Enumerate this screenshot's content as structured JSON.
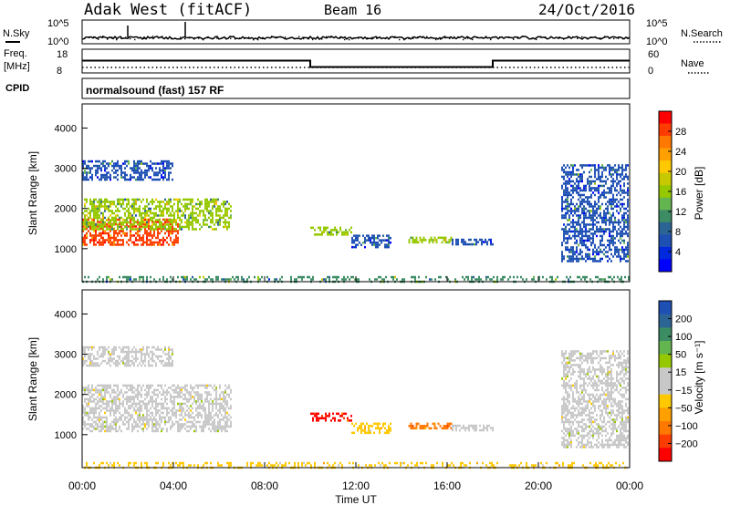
{
  "header": {
    "station": "Adak West (fitACF)",
    "beam": "Beam 16",
    "date": "24/Oct/2016"
  },
  "noise_panel": {
    "left_label": "N.Sky",
    "right_label": "N.Search",
    "ticks_left": [
      "10^5",
      "10^0"
    ],
    "ticks_right": [
      "10^5",
      "10^0"
    ]
  },
  "freq_panel": {
    "left_label_1": "Freq.",
    "left_label_2": "[MHz]",
    "cpid_label": "CPID",
    "right_label": "Nave",
    "ticks_left": [
      "18",
      "8"
    ],
    "ticks_right": [
      "60",
      "0"
    ],
    "cpid_text": "normalsound (fast) 157 RF",
    "frequency_steps_mhz": [
      {
        "from_hour": 0,
        "to_hour": 10,
        "value": 13.2
      },
      {
        "from_hour": 10,
        "to_hour": 18,
        "value": 10.5
      },
      {
        "from_hour": 18,
        "to_hour": 24,
        "value": 13.2
      }
    ]
  },
  "colorbars": {
    "power": {
      "label": "Power [dB]",
      "ticks": [
        "28",
        "24",
        "20",
        "16",
        "12",
        "8",
        "4"
      ],
      "colors": [
        "#ff0000",
        "#ff3c00",
        "#ff7800",
        "#ffa000",
        "#ffc800",
        "#c8c800",
        "#96c800",
        "#64b450",
        "#3c8c64",
        "#2d6496",
        "#1e50b4",
        "#0028dc",
        "#0000ff"
      ]
    },
    "velocity": {
      "label": "Velocity [m s⁻¹]",
      "ticks": [
        "200",
        "100",
        "50",
        "15",
        "−15",
        "−50",
        "−100",
        "−200"
      ],
      "colors": [
        "#1e50b4",
        "#2d6496",
        "#3c8c64",
        "#64b450",
        "#96c800",
        "#c8c8c8",
        "#c8c8c8",
        "#ffc800",
        "#ffa000",
        "#ff7800",
        "#ff3c00",
        "#ff0000"
      ]
    }
  },
  "chart_data": [
    {
      "type": "heatmap",
      "name": "power",
      "ylabel": "Slant Range [km]",
      "xlabel": "Time UT",
      "xlim_hours": [
        0,
        24
      ],
      "ylim_km": [
        180,
        4600
      ],
      "yticks": [
        "1000",
        "2000",
        "3000",
        "4000"
      ],
      "xticks": [
        "00:00",
        "04:00",
        "08:00",
        "12:00",
        "16:00",
        "20:00",
        "00:00"
      ],
      "echo_regions": [
        {
          "t0": 0.0,
          "t1": 4.2,
          "r0": 1100,
          "r1": 1750,
          "value_db": 28
        },
        {
          "t0": 0.0,
          "t1": 6.5,
          "r0": 1500,
          "r1": 2250,
          "value_db": 14
        },
        {
          "t0": 0.0,
          "t1": 4.0,
          "r0": 2700,
          "r1": 3200,
          "value_db": 6
        },
        {
          "t0": 10.0,
          "t1": 11.8,
          "r0": 1350,
          "r1": 1550,
          "value_db": 14
        },
        {
          "t0": 11.8,
          "t1": 13.5,
          "r0": 1050,
          "r1": 1350,
          "value_db": 6
        },
        {
          "t0": 14.3,
          "t1": 16.2,
          "r0": 1150,
          "r1": 1300,
          "value_db": 14
        },
        {
          "t0": 16.2,
          "t1": 18.0,
          "r0": 1100,
          "r1": 1250,
          "value_db": 6
        },
        {
          "t0": 21.0,
          "t1": 23.9,
          "r0": 700,
          "r1": 3100,
          "value_db": 6
        },
        {
          "t0": 0.0,
          "t1": 24.0,
          "r0": 200,
          "r1": 320,
          "value_db": 10
        }
      ]
    },
    {
      "type": "heatmap",
      "name": "velocity",
      "ylabel": "Slant Range [km]",
      "xlabel": "Time UT",
      "xlim_hours": [
        0,
        24
      ],
      "ylim_km": [
        180,
        4600
      ],
      "yticks": [
        "1000",
        "2000",
        "3000",
        "4000"
      ],
      "xticks": [
        "00:00",
        "04:00",
        "08:00",
        "12:00",
        "16:00",
        "20:00",
        "00:00"
      ],
      "echo_regions": [
        {
          "t0": 0.0,
          "t1": 6.5,
          "r0": 1100,
          "r1": 2250,
          "value_ms": 0
        },
        {
          "t0": 0.0,
          "t1": 4.0,
          "r0": 2700,
          "r1": 3200,
          "value_ms": 0
        },
        {
          "t0": 10.0,
          "t1": 11.8,
          "r0": 1350,
          "r1": 1550,
          "value_ms": -200
        },
        {
          "t0": 11.8,
          "t1": 13.5,
          "r0": 1050,
          "r1": 1300,
          "value_ms": -60
        },
        {
          "t0": 14.3,
          "t1": 16.2,
          "r0": 1150,
          "r1": 1300,
          "value_ms": -120
        },
        {
          "t0": 16.2,
          "t1": 18.0,
          "r0": 1100,
          "r1": 1250,
          "value_ms": 40
        },
        {
          "t0": 21.0,
          "t1": 23.9,
          "r0": 700,
          "r1": 3100,
          "value_ms": 10
        },
        {
          "t0": 0.0,
          "t1": 24.0,
          "r0": 200,
          "r1": 320,
          "value_ms": -50
        }
      ]
    }
  ]
}
